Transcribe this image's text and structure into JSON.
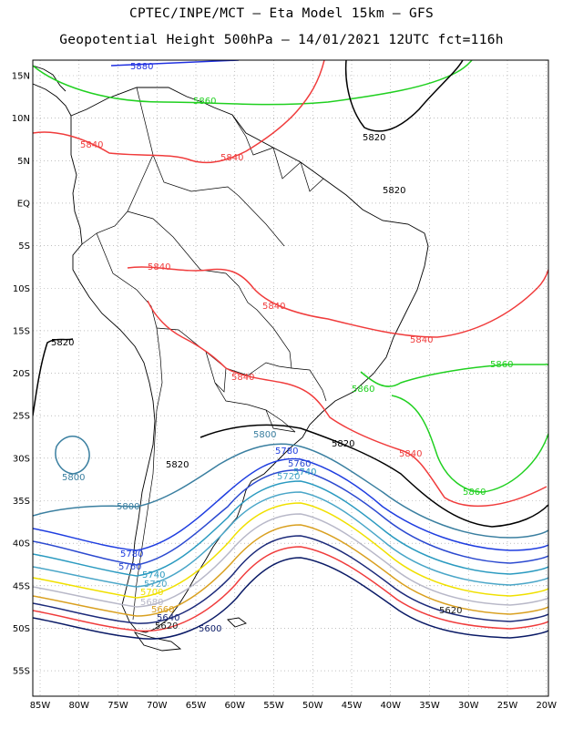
{
  "header": {
    "line1": "CPTEC/INPE/MCT –  Eta Model 15km – GFS",
    "line2": "Geopotential Height 500hPa – 14/01/2021 12UTC fct=116h"
  },
  "axes": {
    "lat_labels": [
      "15N",
      "10N",
      "5N",
      "EQ",
      "5S",
      "10S",
      "15S",
      "20S",
      "25S",
      "30S",
      "35S",
      "40S",
      "45S",
      "50S",
      "55S"
    ],
    "lat_values": [
      15,
      10,
      5,
      0,
      -5,
      -10,
      -15,
      -20,
      -25,
      -30,
      -35,
      -40,
      -45,
      -50,
      -55
    ],
    "lon_labels": [
      "85W",
      "80W",
      "75W",
      "70W",
      "65W",
      "60W",
      "55W",
      "50W",
      "45W",
      "40W",
      "35W",
      "30W",
      "25W",
      "20W"
    ],
    "lon_values": [
      -85,
      -80,
      -75,
      -70,
      -65,
      -60,
      -55,
      -50,
      -45,
      -40,
      -35,
      -30,
      -25,
      -20
    ]
  },
  "contour_colors": {
    "5600": "#0a1a66",
    "5620": "#222222",
    "5640": "#1c2a7a",
    "5660": "#d9a020",
    "5680": "#b8b8c8",
    "5700": "#f0e000",
    "5720": "#4aa6c8",
    "5740": "#2a9ac0",
    "5760": "#2c4ad0",
    "5780": "#1f3ee0",
    "5800": "#3a7fa0",
    "5820": "#000000",
    "5840": "#f03c3c",
    "5860": "#20d020",
    "5880": "#2030e0"
  },
  "contour_labels": [
    {
      "id": "l5880a",
      "text": "5880",
      "level": "5880"
    },
    {
      "id": "l5860a",
      "text": "5860",
      "level": "5860"
    },
    {
      "id": "l5820a",
      "text": "5820",
      "level": "5820"
    },
    {
      "id": "l5840a",
      "text": "5840",
      "level": "5840"
    },
    {
      "id": "l5840b",
      "text": "5840",
      "level": "5840"
    },
    {
      "id": "l5820b",
      "text": "5820",
      "level": "5820"
    },
    {
      "id": "l5840c",
      "text": "5840",
      "level": "5840"
    },
    {
      "id": "l5840d",
      "text": "5840",
      "level": "5840"
    },
    {
      "id": "l5820c",
      "text": "5820",
      "level": "5820"
    },
    {
      "id": "l5840e",
      "text": "5840",
      "level": "5840"
    },
    {
      "id": "l5860b",
      "text": "5860",
      "level": "5860"
    },
    {
      "id": "l5840f",
      "text": "5840",
      "level": "5840"
    },
    {
      "id": "l5860c",
      "text": "5860",
      "level": "5860"
    },
    {
      "id": "l5800a",
      "text": "5800",
      "level": "5800"
    },
    {
      "id": "l5780a",
      "text": "5780",
      "level": "5780"
    },
    {
      "id": "l5820d",
      "text": "5820",
      "level": "5820"
    },
    {
      "id": "l5840g",
      "text": "5840",
      "level": "5840"
    },
    {
      "id": "l5860d",
      "text": "5860",
      "level": "5860"
    },
    {
      "id": "l5820e",
      "text": "5820",
      "level": "5820"
    },
    {
      "id": "l5760a",
      "text": "5760",
      "level": "5760"
    },
    {
      "id": "l5740a",
      "text": "5740",
      "level": "5740"
    },
    {
      "id": "l5720a",
      "text": "5720",
      "level": "5720"
    },
    {
      "id": "l5800b",
      "text": "5800",
      "level": "5800"
    },
    {
      "id": "l5800c",
      "text": "5800",
      "level": "5800"
    },
    {
      "id": "l5780b",
      "text": "5780",
      "level": "5780"
    },
    {
      "id": "l5760b",
      "text": "5760",
      "level": "5760"
    },
    {
      "id": "l5740b",
      "text": "5740",
      "level": "5740"
    },
    {
      "id": "l5720b",
      "text": "5720",
      "level": "5720"
    },
    {
      "id": "l5700a",
      "text": "5700",
      "level": "5700"
    },
    {
      "id": "l5680a",
      "text": "5680",
      "level": "5680"
    },
    {
      "id": "l5660a",
      "text": "5660",
      "level": "5660"
    },
    {
      "id": "l5640a",
      "text": "5640",
      "level": "5640"
    },
    {
      "id": "l5620a",
      "text": "5620",
      "level": "5620"
    },
    {
      "id": "l5600a",
      "text": "5600",
      "level": "5600"
    },
    {
      "id": "l5620b",
      "text": "5620",
      "level": "5620"
    }
  ]
}
